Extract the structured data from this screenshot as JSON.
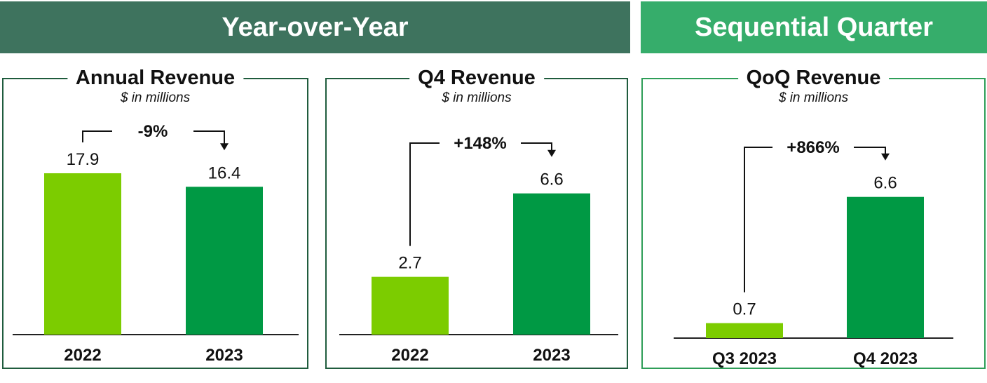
{
  "headers": {
    "yoy": "Year-over-Year",
    "seq": "Sequential Quarter"
  },
  "colors": {
    "header_yoy": "#3e735e",
    "header_seq": "#36ad6b",
    "bar_prior": "#7ccc00",
    "bar_current": "#009944",
    "border_yoy": "#1f5c3d",
    "border_seq": "#2e9e58"
  },
  "panels": [
    {
      "title": "Annual Revenue",
      "subtitle": "$ in millions"
    },
    {
      "title": "Q4 Revenue",
      "subtitle": "$ in millions"
    },
    {
      "title": "QoQ Revenue",
      "subtitle": "$ in millions"
    }
  ],
  "chart_data": [
    {
      "type": "bar",
      "title": "Annual Revenue",
      "subtitle": "$ in millions",
      "categories": [
        "2022",
        "2023"
      ],
      "values": [
        17.9,
        16.4
      ],
      "value_labels": [
        "17.9",
        "16.4"
      ],
      "change_label": "-9%",
      "grid": false
    },
    {
      "type": "bar",
      "title": "Q4 Revenue",
      "subtitle": "$ in millions",
      "categories": [
        "2022",
        "2023"
      ],
      "values": [
        2.7,
        6.6
      ],
      "value_labels": [
        "2.7",
        "6.6"
      ],
      "change_label": "+148%",
      "grid": false
    },
    {
      "type": "bar",
      "title": "QoQ Revenue",
      "subtitle": "$ in millions",
      "categories": [
        "Q3 2023",
        "Q4 2023"
      ],
      "values": [
        0.7,
        6.6
      ],
      "value_labels": [
        "0.7",
        "6.6"
      ],
      "change_label": "+866%",
      "grid": false
    }
  ]
}
